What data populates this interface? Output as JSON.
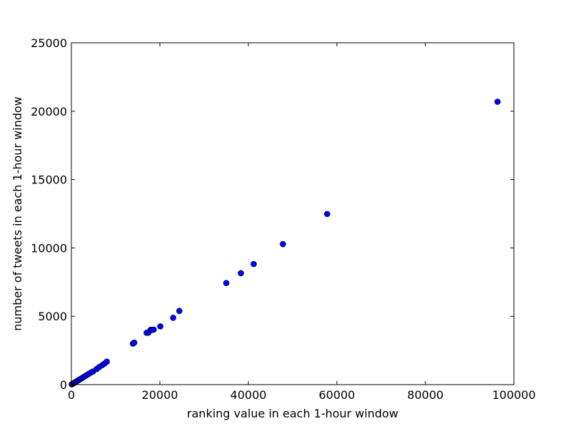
{
  "chart_data": {
    "type": "scatter",
    "xlabel": "ranking value in each 1-hour window",
    "ylabel": "number of tweets in each 1-hour window",
    "xlim": [
      0,
      100000
    ],
    "ylim": [
      0,
      25000
    ],
    "x_ticks": [
      0,
      20000,
      40000,
      60000,
      80000,
      100000
    ],
    "y_ticks": [
      0,
      5000,
      10000,
      15000,
      20000,
      25000
    ],
    "x_tick_labels": [
      "0",
      "20000",
      "40000",
      "60000",
      "80000",
      "100000"
    ],
    "y_tick_labels": [
      "0",
      "5000",
      "10000",
      "15000",
      "20000",
      "25000"
    ],
    "grid": false,
    "legend": "none",
    "marker_color": "#0000ff",
    "series": [
      {
        "points": [
          [
            100,
            20
          ],
          [
            200,
            40
          ],
          [
            300,
            60
          ],
          [
            400,
            80
          ],
          [
            500,
            100
          ],
          [
            700,
            140
          ],
          [
            900,
            180
          ],
          [
            1100,
            220
          ],
          [
            1300,
            260
          ],
          [
            1600,
            320
          ],
          [
            1900,
            380
          ],
          [
            2200,
            440
          ],
          [
            2600,
            520
          ],
          [
            3000,
            600
          ],
          [
            3400,
            680
          ],
          [
            3900,
            780
          ],
          [
            4400,
            880
          ],
          [
            4900,
            960
          ],
          [
            5700,
            1140
          ],
          [
            6300,
            1290
          ],
          [
            7000,
            1430
          ],
          [
            7500,
            1540
          ],
          [
            8000,
            1680
          ],
          [
            13900,
            3000
          ],
          [
            14200,
            3070
          ],
          [
            17000,
            3790
          ],
          [
            17400,
            3800
          ],
          [
            17900,
            4000
          ],
          [
            18200,
            4010
          ],
          [
            18600,
            4020
          ],
          [
            20100,
            4260
          ],
          [
            23000,
            4890
          ],
          [
            24400,
            5390
          ],
          [
            35000,
            7430
          ],
          [
            38300,
            8150
          ],
          [
            41200,
            8820
          ],
          [
            47800,
            10280
          ],
          [
            57800,
            12480
          ],
          [
            96300,
            20690
          ]
        ]
      }
    ]
  }
}
